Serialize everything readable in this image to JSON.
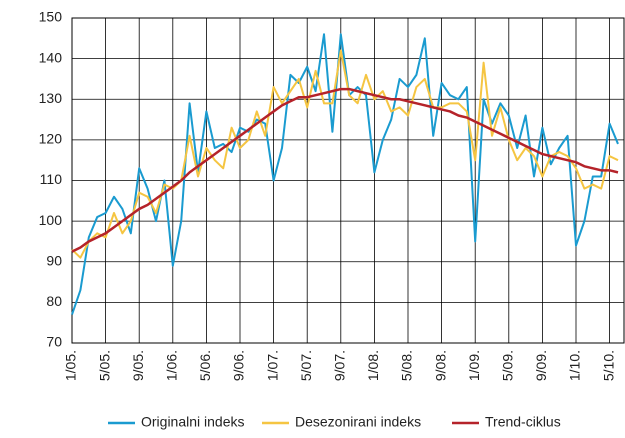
{
  "chart_data": {
    "type": "line",
    "categories": [
      "1/05.",
      null,
      null,
      null,
      "5/05.",
      null,
      null,
      null,
      "9/05.",
      null,
      null,
      null,
      "1/06.",
      null,
      null,
      null,
      "5/06.",
      null,
      null,
      null,
      "9/06.",
      null,
      null,
      null,
      "1/07.",
      null,
      null,
      null,
      "5/07.",
      null,
      null,
      null,
      "9/07.",
      null,
      null,
      null,
      "1/08.",
      null,
      null,
      null,
      "5/08.",
      null,
      null,
      null,
      "9/08.",
      null,
      null,
      null,
      "1/09.",
      null,
      null,
      null,
      "5/09.",
      null,
      null,
      null,
      "9/09.",
      null,
      null,
      null,
      "1/10.",
      null,
      null,
      null,
      "5/10.",
      null
    ],
    "series": [
      {
        "name": "Originalni indeks",
        "color": "#1a9bd0",
        "values": [
          77,
          83,
          96,
          101,
          102,
          106,
          103,
          97,
          113,
          108,
          100,
          110,
          89,
          100,
          129,
          112,
          127,
          118,
          119,
          117,
          123,
          122,
          125,
          124,
          110,
          118,
          136,
          134,
          138,
          132,
          146,
          122,
          146,
          131,
          133,
          131,
          112,
          120,
          125,
          135,
          133,
          136,
          145,
          121,
          134,
          131,
          130,
          133,
          95,
          130,
          124,
          129,
          126,
          118,
          126,
          111,
          123,
          114,
          118,
          121,
          94,
          100,
          111,
          111,
          124,
          119
        ]
      },
      {
        "name": "Desezonirani indeks",
        "color": "#f5c542",
        "values": [
          93,
          91,
          95,
          97,
          96,
          102,
          97,
          100,
          107,
          106,
          102,
          109,
          108,
          110,
          121,
          111,
          118,
          115,
          113,
          123,
          118,
          120,
          127,
          121,
          133,
          129,
          132,
          135,
          128,
          137,
          129,
          129,
          142,
          131,
          129,
          136,
          130,
          132,
          127,
          128,
          126,
          133,
          135,
          128,
          128,
          129,
          129,
          127,
          115,
          139,
          121,
          128,
          120,
          115,
          118,
          116,
          111,
          116,
          117,
          116,
          113,
          108,
          109,
          108,
          116,
          115
        ]
      },
      {
        "name": "Trend-ciklus",
        "color": "#b5232a",
        "values": [
          92.5,
          93.5,
          95,
          96,
          97,
          98.5,
          100,
          101.5,
          103,
          104,
          105.5,
          107,
          108.5,
          110,
          112,
          113.5,
          115,
          116.5,
          118,
          119.5,
          121,
          122.5,
          124,
          125.5,
          127,
          128.5,
          129.5,
          130.5,
          130.5,
          131,
          131.5,
          132,
          132.5,
          132.5,
          132,
          131.5,
          131,
          130.5,
          130,
          130,
          129.5,
          129,
          128.5,
          128,
          127.5,
          127,
          126,
          125.5,
          124.5,
          123.5,
          122.5,
          121.5,
          120.5,
          119.5,
          118.5,
          117.5,
          116.5,
          116,
          115.5,
          115,
          114.5,
          113.5,
          113,
          112.5,
          112.5,
          112
        ]
      }
    ],
    "ylim": [
      70,
      150
    ],
    "yticks": [
      70,
      80,
      90,
      100,
      110,
      120,
      130,
      140,
      150
    ],
    "grid": true,
    "legend": "bottom"
  }
}
